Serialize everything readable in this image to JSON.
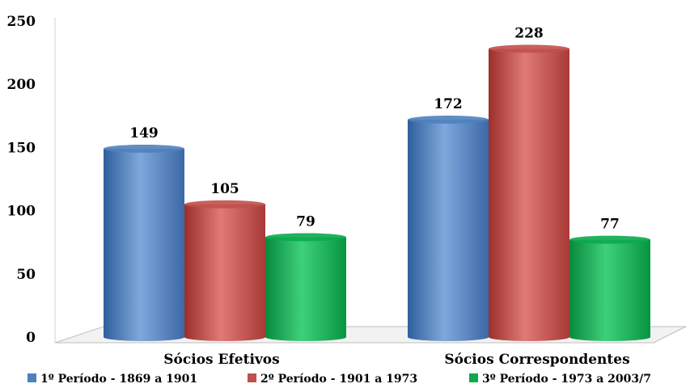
{
  "chart_data": {
    "type": "bar",
    "categories": [
      "Sócios Efetivos",
      "Sócios Correspondentes"
    ],
    "series": [
      {
        "name": "1º Período - 1869 a 1901",
        "values": [
          149,
          172
        ],
        "color": "#4F81BD"
      },
      {
        "name": "2º  Período - 1901 a 1973",
        "values": [
          105,
          228
        ],
        "color": "#C0504D"
      },
      {
        "name": "3º Período - 1973 a 2003/7",
        "values": [
          79,
          77
        ],
        "color": "#0BAA4E"
      }
    ],
    "yticks": [
      0,
      50,
      100,
      150,
      200,
      250
    ],
    "ylim": [
      0,
      250
    ],
    "legend_position": "bottom",
    "grid": false,
    "style": "3d-cylinder"
  }
}
